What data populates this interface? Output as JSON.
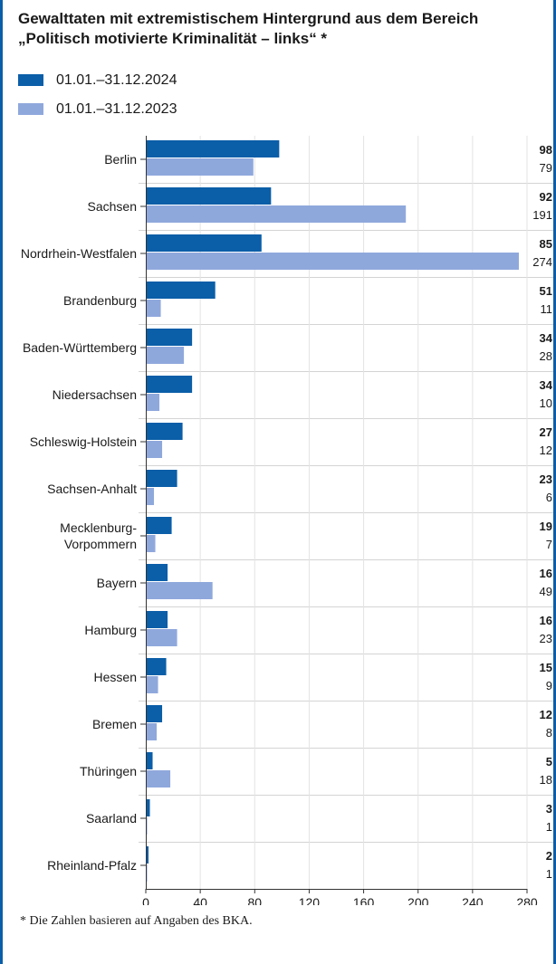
{
  "title": "Gewalttaten mit extremistischem Hintergrund aus dem Bereich „Politisch motivierte Kriminalität – links“ *",
  "footnote": "* Die Zahlen basieren auf Angaben des BKA.",
  "colors": {
    "accent": "#0b5ea8",
    "s2024": "#0b5ea8",
    "s2023": "#8fa8dc"
  },
  "chart_data": {
    "type": "bar",
    "orientation": "horizontal",
    "title": "Gewalttaten mit extremistischem Hintergrund aus dem Bereich „Politisch motivierte Kriminalität – links“ *",
    "categories": [
      "Berlin",
      "Sachsen",
      "Nordrhein-Westfalen",
      "Brandenburg",
      "Baden-Württemberg",
      "Niedersachsen",
      "Schleswig-Holstein",
      "Sachsen-Anhalt",
      "Mecklenburg-Vorpommern",
      "Bayern",
      "Hamburg",
      "Hessen",
      "Bremen",
      "Thüringen",
      "Saarland",
      "Rheinland-Pfalz"
    ],
    "category_lines": [
      [
        "Berlin"
      ],
      [
        "Sachsen"
      ],
      [
        "Nordrhein-Westfalen"
      ],
      [
        "Brandenburg"
      ],
      [
        "Baden-Württemberg"
      ],
      [
        "Niedersachsen"
      ],
      [
        "Schleswig-Holstein"
      ],
      [
        "Sachsen-Anhalt"
      ],
      [
        "Mecklenburg-",
        "Vorpommern"
      ],
      [
        "Bayern"
      ],
      [
        "Hamburg"
      ],
      [
        "Hessen"
      ],
      [
        "Bremen"
      ],
      [
        "Thüringen"
      ],
      [
        "Saarland"
      ],
      [
        "Rheinland-Pfalz"
      ]
    ],
    "series": [
      {
        "name": "01.01.–31.12.2024",
        "color": "#0b5ea8",
        "bold_labels": true,
        "values": [
          98,
          92,
          85,
          51,
          34,
          34,
          27,
          23,
          19,
          16,
          16,
          15,
          12,
          5,
          3,
          2
        ]
      },
      {
        "name": "01.01.–31.12.2023",
        "color": "#8fa8dc",
        "bold_labels": false,
        "values": [
          79,
          191,
          274,
          11,
          28,
          10,
          12,
          6,
          7,
          49,
          23,
          9,
          8,
          18,
          1,
          1
        ]
      }
    ],
    "xlim": [
      0,
      280
    ],
    "xticks": [
      "0",
      "40",
      "80",
      "120",
      "160",
      "200",
      "240",
      "280"
    ],
    "grid": true,
    "legend": "top-left"
  }
}
